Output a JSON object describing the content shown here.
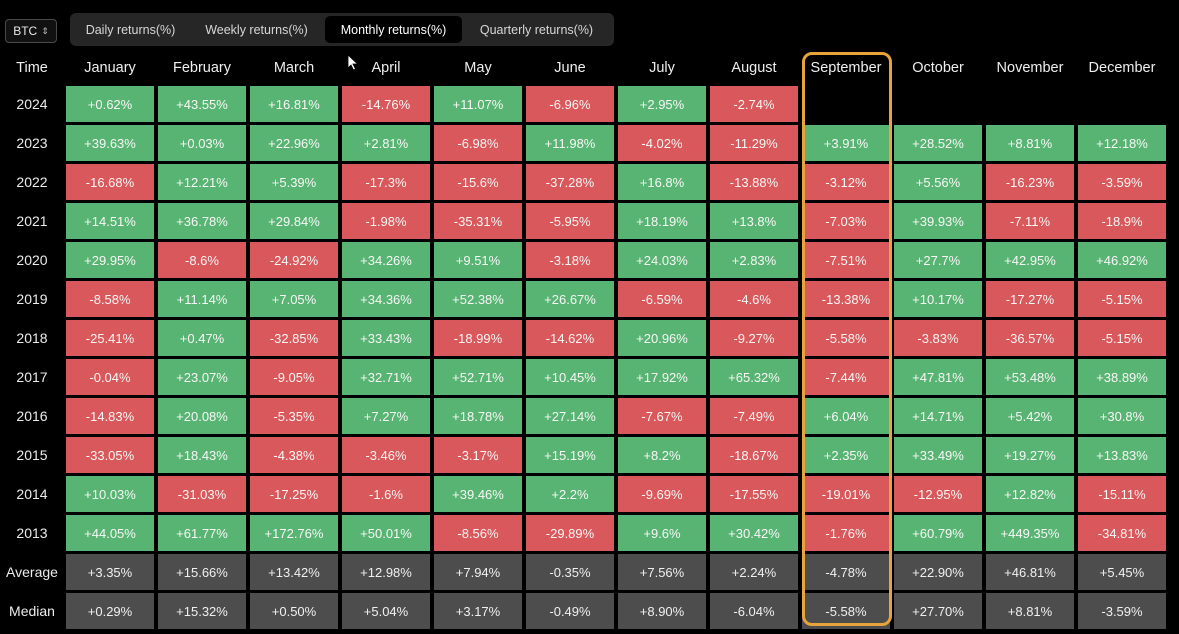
{
  "asset_select": {
    "value": "BTC"
  },
  "tabs": [
    {
      "label": "Daily returns(%)",
      "active": false
    },
    {
      "label": "Weekly returns(%)",
      "active": false
    },
    {
      "label": "Monthly returns(%)",
      "active": true
    },
    {
      "label": "Quarterly returns(%)",
      "active": false
    }
  ],
  "table": {
    "time_header": "Time",
    "months": [
      "January",
      "February",
      "March",
      "April",
      "May",
      "June",
      "July",
      "August",
      "September",
      "October",
      "November",
      "December"
    ],
    "rows": [
      {
        "year": "2024",
        "values": [
          "+0.62%",
          "+43.55%",
          "+16.81%",
          "-14.76%",
          "+11.07%",
          "-6.96%",
          "+2.95%",
          "-2.74%",
          "",
          "",
          "",
          ""
        ]
      },
      {
        "year": "2023",
        "values": [
          "+39.63%",
          "+0.03%",
          "+22.96%",
          "+2.81%",
          "-6.98%",
          "+11.98%",
          "-4.02%",
          "-11.29%",
          "+3.91%",
          "+28.52%",
          "+8.81%",
          "+12.18%"
        ]
      },
      {
        "year": "2022",
        "values": [
          "-16.68%",
          "+12.21%",
          "+5.39%",
          "-17.3%",
          "-15.6%",
          "-37.28%",
          "+16.8%",
          "-13.88%",
          "-3.12%",
          "+5.56%",
          "-16.23%",
          "-3.59%"
        ]
      },
      {
        "year": "2021",
        "values": [
          "+14.51%",
          "+36.78%",
          "+29.84%",
          "-1.98%",
          "-35.31%",
          "-5.95%",
          "+18.19%",
          "+13.8%",
          "-7.03%",
          "+39.93%",
          "-7.11%",
          "-18.9%"
        ]
      },
      {
        "year": "2020",
        "values": [
          "+29.95%",
          "-8.6%",
          "-24.92%",
          "+34.26%",
          "+9.51%",
          "-3.18%",
          "+24.03%",
          "+2.83%",
          "-7.51%",
          "+27.7%",
          "+42.95%",
          "+46.92%"
        ]
      },
      {
        "year": "2019",
        "values": [
          "-8.58%",
          "+11.14%",
          "+7.05%",
          "+34.36%",
          "+52.38%",
          "+26.67%",
          "-6.59%",
          "-4.6%",
          "-13.38%",
          "+10.17%",
          "-17.27%",
          "-5.15%"
        ]
      },
      {
        "year": "2018",
        "values": [
          "-25.41%",
          "+0.47%",
          "-32.85%",
          "+33.43%",
          "-18.99%",
          "-14.62%",
          "+20.96%",
          "-9.27%",
          "-5.58%",
          "-3.83%",
          "-36.57%",
          "-5.15%"
        ]
      },
      {
        "year": "2017",
        "values": [
          "-0.04%",
          "+23.07%",
          "-9.05%",
          "+32.71%",
          "+52.71%",
          "+10.45%",
          "+17.92%",
          "+65.32%",
          "-7.44%",
          "+47.81%",
          "+53.48%",
          "+38.89%"
        ]
      },
      {
        "year": "2016",
        "values": [
          "-14.83%",
          "+20.08%",
          "-5.35%",
          "+7.27%",
          "+18.78%",
          "+27.14%",
          "-7.67%",
          "-7.49%",
          "+6.04%",
          "+14.71%",
          "+5.42%",
          "+30.8%"
        ]
      },
      {
        "year": "2015",
        "values": [
          "-33.05%",
          "+18.43%",
          "-4.38%",
          "-3.46%",
          "-3.17%",
          "+15.19%",
          "+8.2%",
          "-18.67%",
          "+2.35%",
          "+33.49%",
          "+19.27%",
          "+13.83%"
        ]
      },
      {
        "year": "2014",
        "values": [
          "+10.03%",
          "-31.03%",
          "-17.25%",
          "-1.6%",
          "+39.46%",
          "+2.2%",
          "-9.69%",
          "-17.55%",
          "-19.01%",
          "-12.95%",
          "+12.82%",
          "-15.11%"
        ]
      },
      {
        "year": "2013",
        "values": [
          "+44.05%",
          "+61.77%",
          "+172.76%",
          "+50.01%",
          "-8.56%",
          "-29.89%",
          "+9.6%",
          "+30.42%",
          "-1.76%",
          "+60.79%",
          "+449.35%",
          "-34.81%"
        ]
      }
    ],
    "stats": [
      {
        "label": "Average",
        "values": [
          "+3.35%",
          "+15.66%",
          "+13.42%",
          "+12.98%",
          "+7.94%",
          "-0.35%",
          "+7.56%",
          "+2.24%",
          "-4.78%",
          "+22.90%",
          "+46.81%",
          "+5.45%"
        ]
      },
      {
        "label": "Median",
        "values": [
          "+0.29%",
          "+15.32%",
          "+0.50%",
          "+5.04%",
          "+3.17%",
          "-0.49%",
          "+8.90%",
          "-6.04%",
          "-5.58%",
          "+27.70%",
          "+8.81%",
          "-3.59%"
        ]
      }
    ]
  },
  "colors": {
    "positive": "#58b472",
    "negative": "#d8585b",
    "stat": "#4d4d4d",
    "highlight": "#e6a43a"
  },
  "highlight": {
    "column": "September"
  }
}
